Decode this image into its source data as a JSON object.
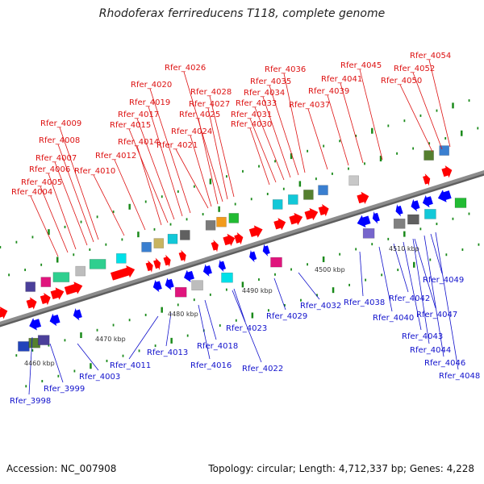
{
  "title": "Rhodoferax ferrireducens T118, complete genome",
  "accession": "Accession: NC_007908",
  "summary": "Topology: circular; Length: 4,712,337 bp; Genes: 4,228",
  "colors": {
    "forward_label": "#dd1111",
    "reverse_label": "#1111cc",
    "forward_arrow": "#ff0000",
    "reverse_arrow": "#0000ff",
    "axis": "#8c8c8c",
    "tick": "#1a8a1a"
  },
  "scale_labels": [
    "4460 kbp",
    "4470 kbp",
    "4480 kbp",
    "4490 kbp",
    "4500 kbp",
    "4510 kbp"
  ],
  "forward_genes": [
    "Rfer_4004",
    "Rfer_4005",
    "Rfer_4006",
    "Rfer_4007",
    "Rfer_4008",
    "Rfer_4009",
    "Rfer_4010",
    "Rfer_4012",
    "Rfer_4014",
    "Rfer_4015",
    "Rfer_4017",
    "Rfer_4019",
    "Rfer_4020",
    "Rfer_4021",
    "Rfer_4024",
    "Rfer_4025",
    "Rfer_4026",
    "Rfer_4027",
    "Rfer_4028",
    "Rfer_4030",
    "Rfer_4031",
    "Rfer_4033",
    "Rfer_4034",
    "Rfer_4035",
    "Rfer_4036",
    "Rfer_4037",
    "Rfer_4039",
    "Rfer_4041",
    "Rfer_4045",
    "Rfer_4050",
    "Rfer_4052",
    "Rfer_4054"
  ],
  "reverse_genes": [
    "Rfer_3998",
    "Rfer_3999",
    "Rfer_4003",
    "Rfer_4011",
    "Rfer_4013",
    "Rfer_4016",
    "Rfer_4018",
    "Rfer_4022",
    "Rfer_4023",
    "Rfer_4029",
    "Rfer_4032",
    "Rfer_4038",
    "Rfer_4040",
    "Rfer_4042",
    "Rfer_4043",
    "Rfer_4044",
    "Rfer_4046",
    "Rfer_4047",
    "Rfer_4048",
    "Rfer_4049"
  ]
}
